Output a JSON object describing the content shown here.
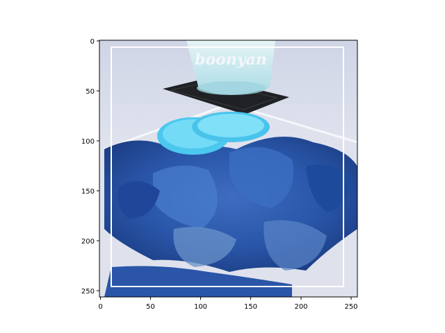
{
  "image": {
    "watermark": "boonyan",
    "description_colors": {
      "plate": "#d9dde8",
      "food": "#2a4f9e",
      "lemon": "#5fd2f2",
      "glass": "#bfe7ee",
      "coaster": "#1d1f22",
      "border": "#ffffff"
    }
  },
  "axes": {
    "x_ticks": [
      "0",
      "50",
      "100",
      "150",
      "200",
      "250"
    ],
    "y_ticks": [
      "0",
      "50",
      "100",
      "150",
      "200",
      "250"
    ],
    "xlim": [
      0,
      256
    ],
    "ylim": [
      256,
      0
    ]
  }
}
